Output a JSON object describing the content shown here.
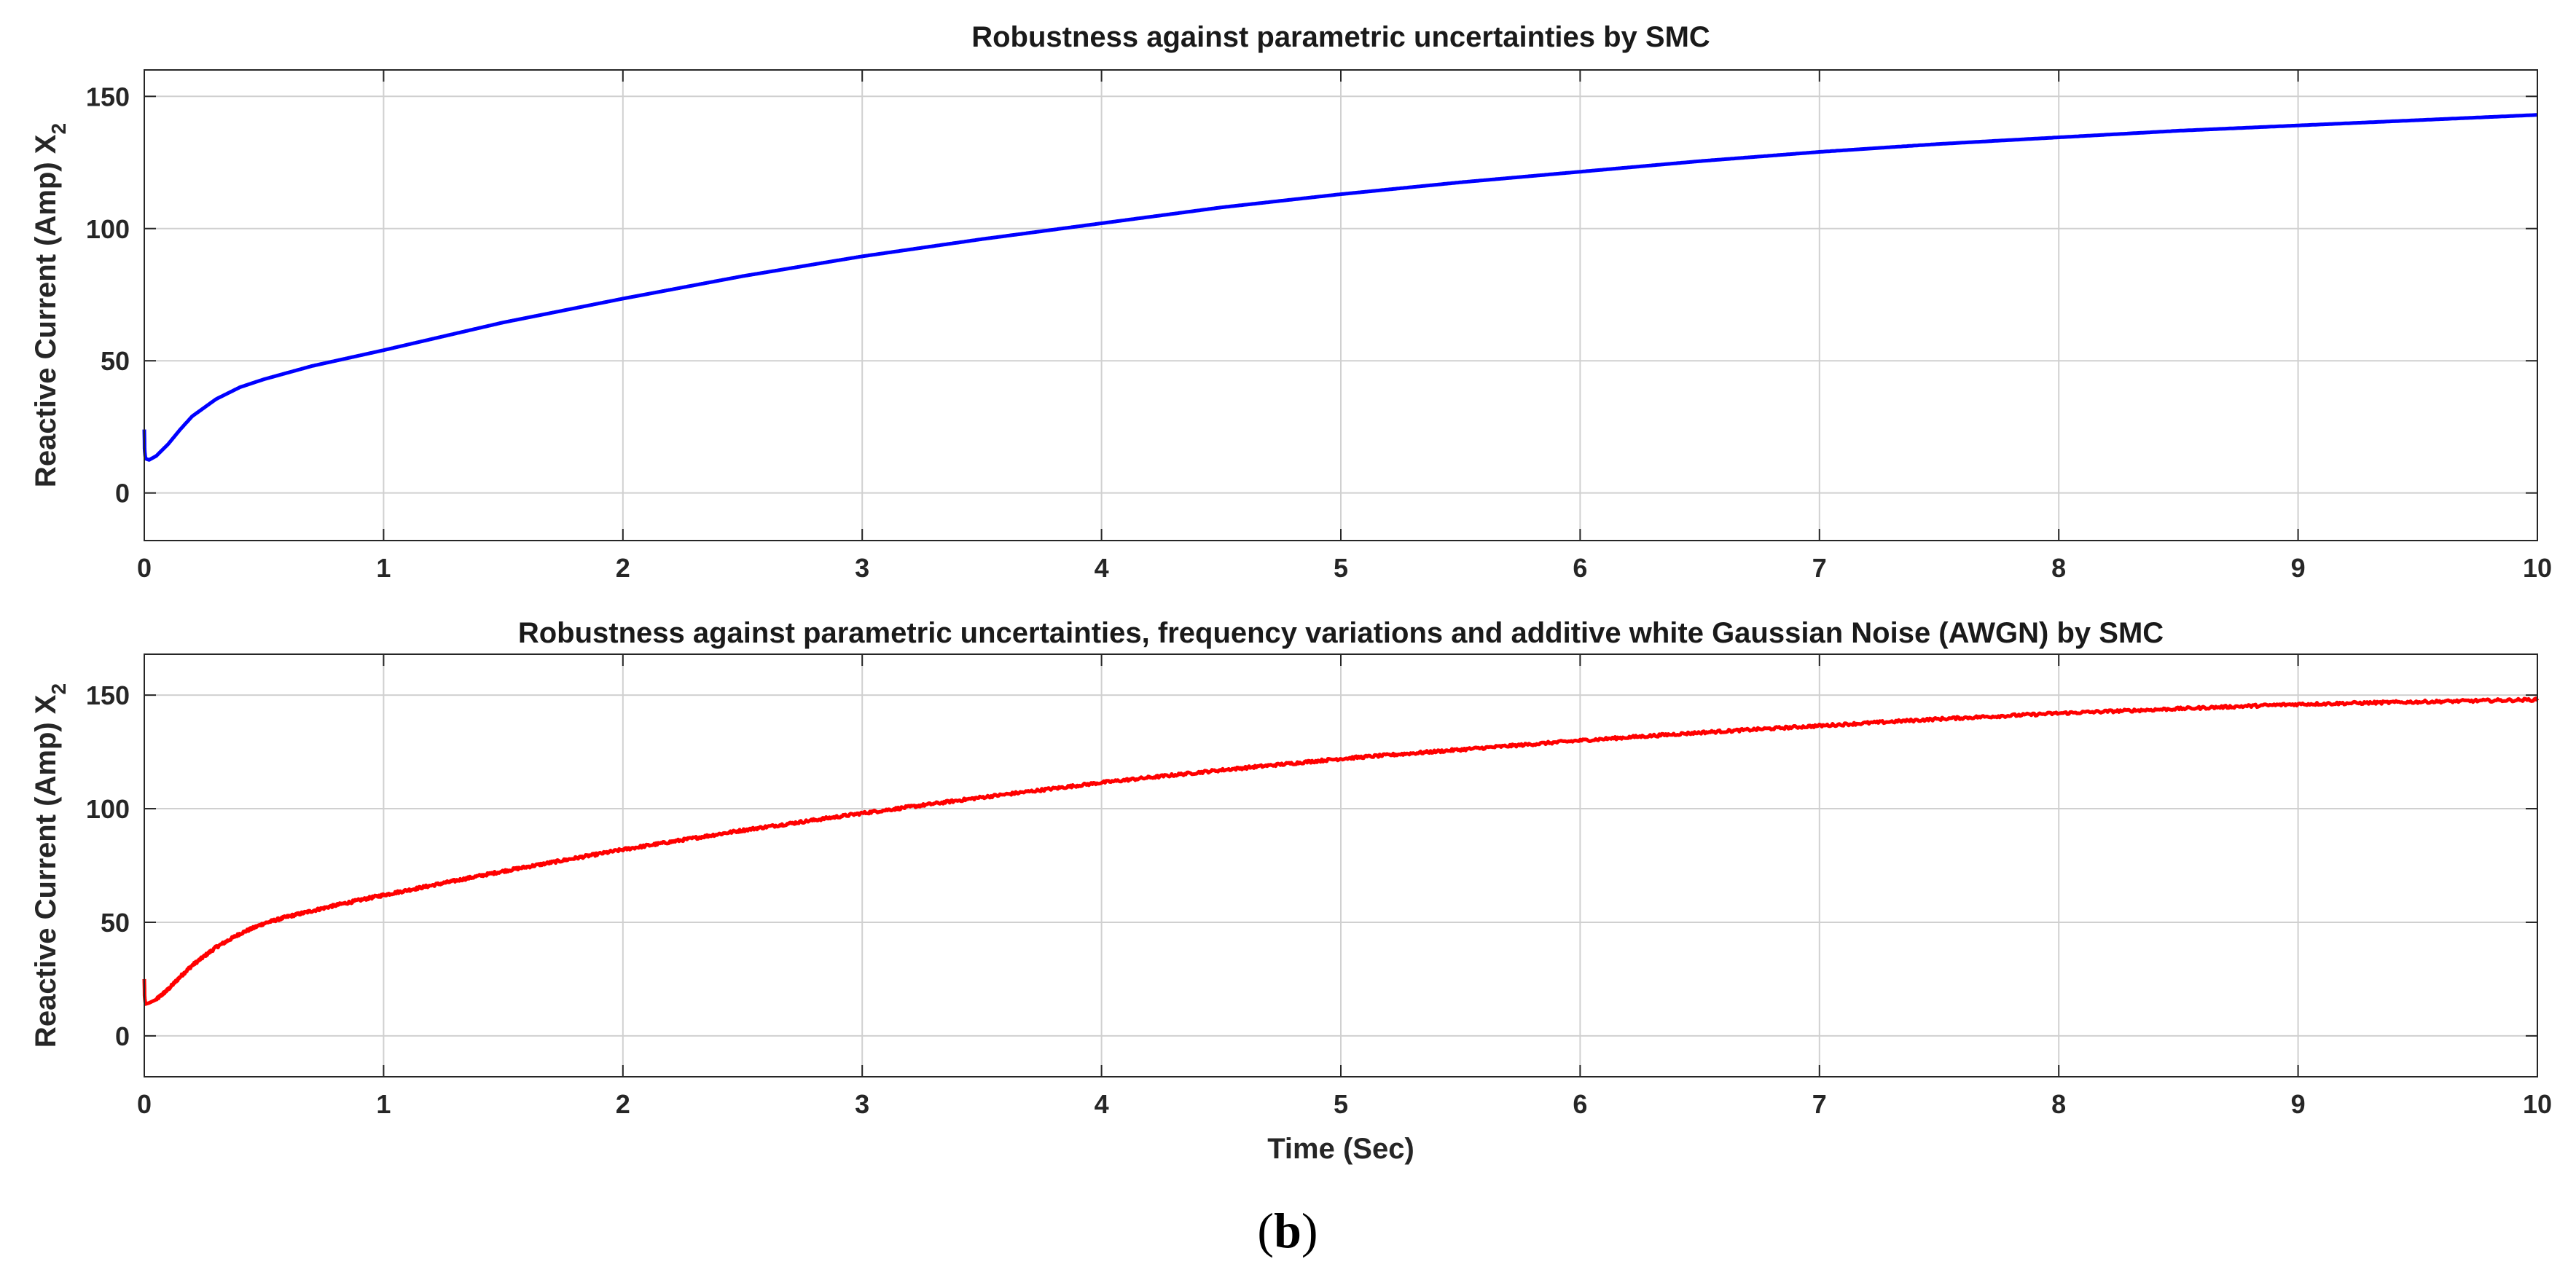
{
  "chart_data": [
    {
      "type": "line",
      "title": "Robustness against parametric uncertainties by SMC",
      "xlabel": "",
      "ylabel": "Reactive Current (Amp) X",
      "ylabel_subscript": "2",
      "xlim": [
        0,
        10
      ],
      "ylim": [
        -18,
        160
      ],
      "xticks": [
        "0",
        "1",
        "2",
        "3",
        "4",
        "5",
        "6",
        "7",
        "8",
        "9",
        "10"
      ],
      "yticks": [
        "0",
        "50",
        "100",
        "150"
      ],
      "grid": true,
      "series": [
        {
          "color": "#0000ff",
          "noise": false,
          "x": [
            0,
            0.0015,
            0.005,
            0.02,
            0.05,
            0.1,
            0.15,
            0.2,
            0.3,
            0.4,
            0.5,
            0.6,
            0.7,
            0.8,
            1,
            1.5,
            2,
            2.5,
            3,
            3.5,
            4,
            4.5,
            5,
            5.5,
            6,
            6.5,
            7,
            7.5,
            8,
            8.5,
            9,
            9.5,
            10
          ],
          "y": [
            24,
            16,
            13,
            12.5,
            14,
            18.5,
            24,
            29,
            35.5,
            40,
            43,
            45.5,
            48,
            50,
            54,
            64.5,
            73.5,
            82,
            89.5,
            96,
            102,
            108,
            113,
            117.5,
            121.5,
            125.5,
            129,
            132,
            134.5,
            137,
            139,
            141,
            143
          ]
        }
      ]
    },
    {
      "type": "line",
      "title": "Robustness against parametric uncertainties, frequency variations and additive white Gaussian Noise (AWGN) by SMC",
      "xlabel": "Time (Sec)",
      "ylabel": "Reactive Current (Amp) X",
      "ylabel_subscript": "2",
      "xlim": [
        0,
        10
      ],
      "ylim": [
        -18,
        168
      ],
      "xticks": [
        "0",
        "1",
        "2",
        "3",
        "4",
        "5",
        "6",
        "7",
        "8",
        "9",
        "10"
      ],
      "yticks": [
        "0",
        "50",
        "100",
        "150"
      ],
      "grid": true,
      "series": [
        {
          "color": "#ff0000",
          "noise": true,
          "x": [
            0,
            0.0015,
            0.005,
            0.02,
            0.05,
            0.1,
            0.15,
            0.2,
            0.3,
            0.4,
            0.5,
            0.6,
            0.7,
            0.8,
            1,
            1.5,
            2,
            2.5,
            3,
            3.5,
            4,
            4.5,
            5,
            5.5,
            6,
            6.5,
            7,
            7.5,
            8,
            8.5,
            9,
            9.5,
            10
          ],
          "y": [
            25,
            17,
            14,
            14.5,
            16,
            20.5,
            26,
            31,
            39,
            45,
            49.5,
            52.5,
            55,
            57.5,
            62,
            72.5,
            82,
            90.5,
            98,
            105,
            111.5,
            117,
            122,
            126,
            130,
            133.5,
            136.5,
            139.5,
            142,
            144,
            146,
            147,
            148
          ]
        }
      ]
    }
  ],
  "caption": {
    "open": "(",
    "letter": "b",
    "close": ")"
  }
}
